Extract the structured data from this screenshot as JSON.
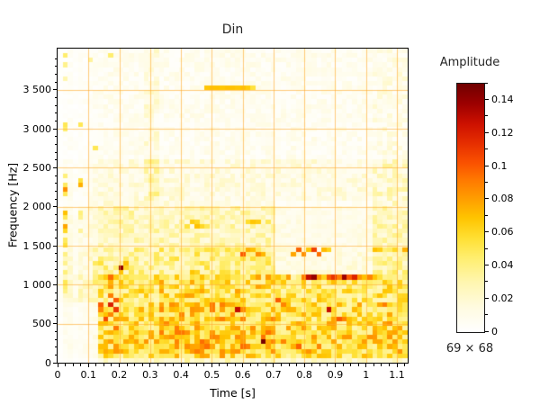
{
  "chart_data": {
    "type": "heatmap",
    "title": "Din",
    "xlabel": "Time [s]",
    "ylabel": "Frequency [Hz]",
    "colorbar_label": "Amplitude",
    "size_label": "69 × 68",
    "nx": 69,
    "ny": 68,
    "xlim": [
      0,
      1.135
    ],
    "ylim": [
      0,
      4030
    ],
    "vmax": 0.15,
    "grid_on": true,
    "grid_color": "#ffab2e",
    "x_major_ticks": [
      0,
      0.1,
      0.2,
      0.3,
      0.4,
      0.5,
      0.6,
      0.7,
      0.8,
      0.9,
      1,
      1.1
    ],
    "x_major_labels": [
      "0",
      "0.1",
      "0.2",
      "0.3",
      "0.4",
      "0.5",
      "0.6",
      "0.7",
      "0.8",
      "0.9",
      "1",
      "1.1"
    ],
    "x_minor_step": 0.025,
    "y_major_ticks": [
      0,
      500,
      1000,
      1500,
      2000,
      2500,
      3000,
      3500
    ],
    "y_major_labels": [
      "0",
      "500",
      "1 000",
      "1 500",
      "2 000",
      "2 500",
      "3 000",
      "3 500"
    ],
    "y_minor_step": 100,
    "colorbar_ticks": [
      0,
      0.02,
      0.04,
      0.06,
      0.08,
      0.1,
      0.12,
      0.14
    ],
    "colorbar_tick_labels": [
      "0",
      "0.02",
      "0.04",
      "0.06",
      "0.08",
      "0.1",
      "0.12",
      "0.14"
    ],
    "colorbar_minor_step": 0.01,
    "colormap_stops": [
      [
        0.0,
        "#ffffff"
      ],
      [
        0.1,
        "#fffbe0"
      ],
      [
        0.2,
        "#fff6b0"
      ],
      [
        0.3,
        "#ffee6e"
      ],
      [
        0.38,
        "#ffdf32"
      ],
      [
        0.46,
        "#ffc400"
      ],
      [
        0.54,
        "#ff9c00"
      ],
      [
        0.61,
        "#ff7a00"
      ],
      [
        0.68,
        "#fa5200"
      ],
      [
        0.76,
        "#e62e00"
      ],
      [
        0.84,
        "#cc1000"
      ],
      [
        0.92,
        "#9c0000"
      ],
      [
        1.0,
        "#700000"
      ]
    ],
    "noise_seed": 7,
    "baseline_bands": [
      [
        2600,
        4040,
        0.002,
        0.012
      ],
      [
        2000,
        2600,
        0.006,
        0.018
      ],
      [
        1500,
        2000,
        0.014,
        0.026
      ],
      [
        1150,
        1500,
        0.018,
        0.032
      ],
      [
        750,
        1150,
        0.026,
        0.045
      ],
      [
        400,
        750,
        0.03,
        0.05
      ],
      [
        120,
        400,
        0.034,
        0.05
      ],
      [
        60,
        120,
        0.03,
        0.042
      ],
      [
        0,
        60,
        0.012,
        0.02
      ]
    ],
    "region_mods": [
      [
        0,
        0.017,
        0.15,
        0,
        4040
      ],
      [
        0.017,
        0.05,
        0.5,
        0,
        4040
      ],
      [
        0.05,
        0.066,
        0.3,
        0,
        4040
      ],
      [
        0.066,
        0.1,
        0.45,
        0,
        4040
      ],
      [
        0.1,
        0.115,
        0.55,
        0,
        4040
      ],
      [
        0,
        0.13,
        0.3,
        0,
        800
      ],
      [
        0.115,
        0.135,
        0.75,
        0,
        4040
      ],
      [
        0.28,
        0.33,
        1.8,
        2000,
        4040
      ],
      [
        1.02,
        1.135,
        1.5,
        2000,
        4040
      ],
      [
        0.7,
        1.02,
        0.45,
        1150,
        2100
      ],
      [
        0.33,
        0.7,
        1.15,
        0,
        1500
      ]
    ],
    "features": [
      [
        0.025,
        3950,
        0.045
      ],
      [
        0.02,
        3800,
        0.038
      ],
      [
        0.03,
        3620,
        0.03
      ],
      [
        0.17,
        3940,
        0.045
      ],
      [
        0.105,
        3870,
        0.035
      ],
      [
        0.028,
        3050,
        0.05
      ],
      [
        0.03,
        2980,
        0.045
      ],
      [
        0.125,
        2760,
        0.05
      ],
      [
        0.025,
        2420,
        0.042
      ],
      [
        0.028,
        2300,
        0.048
      ],
      [
        0.03,
        2200,
        0.085
      ],
      [
        0.025,
        2150,
        0.05
      ],
      [
        0.03,
        1950,
        0.07
      ],
      [
        0.025,
        1870,
        0.05
      ],
      [
        0.03,
        1760,
        0.078
      ],
      [
        0.028,
        1690,
        0.06
      ],
      [
        0.03,
        1600,
        0.048
      ],
      [
        0.025,
        1510,
        0.055
      ],
      [
        0.03,
        1400,
        0.04
      ],
      [
        0.028,
        1280,
        0.038
      ],
      [
        0.03,
        1150,
        0.042
      ],
      [
        0.025,
        1060,
        0.05
      ],
      [
        0.03,
        980,
        0.045
      ],
      [
        0.028,
        900,
        0.04
      ],
      [
        0.075,
        3080,
        0.05
      ],
      [
        0.075,
        2350,
        0.055
      ],
      [
        0.078,
        2270,
        0.075
      ],
      [
        0.08,
        1950,
        0.042
      ],
      [
        0.078,
        1850,
        0.038
      ],
      [
        0.08,
        1700,
        0.035
      ],
      [
        0.48,
        3555,
        0.068
      ],
      [
        0.497,
        3555,
        0.07
      ],
      [
        0.513,
        3555,
        0.07
      ],
      [
        0.53,
        3555,
        0.068
      ],
      [
        0.546,
        3555,
        0.07
      ],
      [
        0.562,
        3555,
        0.07
      ],
      [
        0.579,
        3555,
        0.068
      ],
      [
        0.595,
        3555,
        0.07
      ],
      [
        0.61,
        3555,
        0.066
      ],
      [
        0.627,
        3555,
        0.055
      ],
      [
        0.42,
        1730,
        0.055
      ],
      [
        0.435,
        1780,
        0.065
      ],
      [
        0.452,
        1800,
        0.06
      ],
      [
        0.455,
        1755,
        0.07
      ],
      [
        0.47,
        1740,
        0.06
      ],
      [
        0.487,
        1770,
        0.05
      ],
      [
        0.62,
        1800,
        0.058
      ],
      [
        0.64,
        1830,
        0.068
      ],
      [
        0.657,
        1780,
        0.065
      ],
      [
        0.675,
        1800,
        0.05
      ],
      [
        0.13,
        1300,
        0.048
      ],
      [
        0.145,
        1260,
        0.055
      ],
      [
        0.16,
        1210,
        0.05
      ],
      [
        0.135,
        690,
        0.088
      ],
      [
        0.148,
        755,
        0.1
      ],
      [
        0.155,
        640,
        0.07
      ],
      [
        0.163,
        550,
        0.105
      ],
      [
        0.178,
        1120,
        0.095
      ],
      [
        0.18,
        1040,
        0.075
      ],
      [
        0.178,
        960,
        0.08
      ],
      [
        0.18,
        880,
        0.09
      ],
      [
        0.182,
        800,
        0.1
      ],
      [
        0.18,
        755,
        0.12
      ],
      [
        0.182,
        700,
        0.11
      ],
      [
        0.18,
        640,
        0.088
      ],
      [
        0.185,
        565,
        0.07
      ],
      [
        0.195,
        430,
        0.092
      ],
      [
        0.2,
        1180,
        0.068
      ],
      [
        0.21,
        1235,
        0.14
      ],
      [
        0.215,
        1300,
        0.07
      ],
      [
        0.228,
        1190,
        0.06
      ],
      [
        0.243,
        1155,
        0.05
      ],
      [
        0.22,
        950,
        0.06
      ],
      [
        0.235,
        895,
        0.052
      ],
      [
        0.252,
        1100,
        0.045
      ],
      [
        0.44,
        1145,
        0.068
      ],
      [
        0.456,
        1130,
        0.062
      ],
      [
        0.47,
        1100,
        0.07
      ],
      [
        0.487,
        1090,
        0.052
      ],
      [
        0.52,
        1100,
        0.055
      ],
      [
        0.552,
        1085,
        0.06
      ],
      [
        0.57,
        1100,
        0.05
      ],
      [
        0.7,
        1110,
        0.06
      ],
      [
        0.72,
        1100,
        0.068
      ],
      [
        0.745,
        1095,
        0.08
      ],
      [
        0.798,
        1105,
        0.09
      ],
      [
        0.814,
        1090,
        0.128
      ],
      [
        0.831,
        1095,
        0.14
      ],
      [
        0.847,
        1100,
        0.082
      ],
      [
        0.864,
        1110,
        0.062
      ],
      [
        0.88,
        1100,
        0.1
      ],
      [
        0.896,
        1095,
        0.112
      ],
      [
        0.913,
        1105,
        0.09
      ],
      [
        0.929,
        1090,
        0.138
      ],
      [
        0.946,
        1100,
        0.1
      ],
      [
        0.962,
        1095,
        0.118
      ],
      [
        0.979,
        1100,
        0.082
      ],
      [
        0.995,
        1105,
        0.07
      ],
      [
        1.012,
        1095,
        0.088
      ],
      [
        1.028,
        1100,
        0.068
      ],
      [
        1.045,
        1100,
        0.055
      ],
      [
        0.6,
        1415,
        0.1
      ],
      [
        0.617,
        1430,
        0.075
      ],
      [
        0.633,
        1430,
        0.07
      ],
      [
        0.65,
        1415,
        0.085
      ],
      [
        0.666,
        1410,
        0.073
      ],
      [
        0.765,
        1420,
        0.078
      ],
      [
        0.781,
        1435,
        0.098
      ],
      [
        0.798,
        1420,
        0.085
      ],
      [
        0.814,
        1440,
        0.068
      ],
      [
        0.831,
        1425,
        0.108
      ],
      [
        0.847,
        1420,
        0.094
      ],
      [
        0.864,
        1425,
        0.072
      ],
      [
        0.88,
        1435,
        0.062
      ],
      [
        1.02,
        1440,
        0.07
      ],
      [
        1.045,
        1445,
        0.065
      ],
      [
        1.095,
        1430,
        0.06
      ],
      [
        1.12,
        1440,
        0.075
      ],
      [
        0.585,
        680,
        0.128
      ],
      [
        0.66,
        275,
        0.148
      ],
      [
        0.888,
        680,
        0.128
      ],
      [
        0.905,
        545,
        0.1
      ],
      [
        0.922,
        540,
        0.088
      ],
      [
        0.71,
        775,
        0.1
      ],
      [
        0.727,
        770,
        0.088
      ],
      [
        1.062,
        760,
        0.09
      ],
      [
        1.07,
        630,
        0.078
      ],
      [
        1.078,
        500,
        0.085
      ],
      [
        1.095,
        430,
        0.07
      ],
      [
        0.545,
        140,
        0.068
      ],
      [
        0.565,
        200,
        0.074
      ],
      [
        0.585,
        265,
        0.07
      ],
      [
        0.605,
        330,
        0.078
      ],
      [
        0.975,
        210,
        0.072
      ],
      [
        0.995,
        260,
        0.078
      ],
      [
        1.013,
        320,
        0.084
      ],
      [
        1.032,
        380,
        0.078
      ],
      [
        0.38,
        420,
        0.078
      ],
      [
        0.46,
        430,
        0.082
      ],
      [
        0.5,
        330,
        0.088
      ],
      [
        0.56,
        150,
        0.082
      ],
      [
        0.61,
        205,
        0.088
      ],
      [
        0.68,
        420,
        0.078
      ],
      [
        0.732,
        260,
        0.088
      ],
      [
        0.78,
        205,
        0.098
      ],
      [
        0.8,
        420,
        0.082
      ],
      [
        0.85,
        185,
        0.088
      ],
      [
        0.9,
        265,
        0.078
      ],
      [
        0.932,
        330,
        0.082
      ],
      [
        0.99,
        285,
        0.078
      ],
      [
        1.04,
        245,
        0.078
      ],
      [
        1.08,
        305,
        0.073
      ],
      [
        0.43,
        760,
        0.07
      ],
      [
        0.5,
        700,
        0.072
      ],
      [
        0.565,
        760,
        0.075
      ],
      [
        0.6,
        820,
        0.07
      ],
      [
        0.71,
        640,
        0.07
      ],
      [
        0.79,
        640,
        0.075
      ],
      [
        0.84,
        820,
        0.07
      ],
      [
        0.97,
        700,
        0.072
      ],
      [
        0.16,
        130,
        0.065
      ],
      [
        0.178,
        140,
        0.07
      ],
      [
        0.195,
        135,
        0.075
      ],
      [
        0.21,
        140,
        0.078
      ],
      [
        0.227,
        135,
        0.07
      ],
      [
        0.252,
        140,
        0.06
      ],
      [
        0.42,
        940,
        0.06
      ],
      [
        0.55,
        940,
        0.06
      ],
      [
        0.7,
        940,
        0.055
      ],
      [
        0.86,
        940,
        0.058
      ]
    ]
  }
}
